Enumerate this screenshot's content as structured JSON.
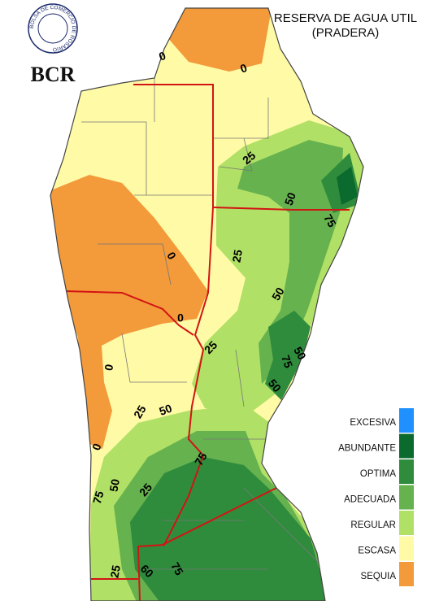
{
  "header": {
    "title": "RESERVA DE AGUA UTIL",
    "subtitle": "(PRADERA)",
    "logo_text": "BCR",
    "logo_ring": "BOLSA DE COMERCIO DE ROSARIO"
  },
  "legend": [
    {
      "label": "EXCESIVA",
      "color": "#1e90ff"
    },
    {
      "label": "ABUNDANTE",
      "color": "#0b6b2e"
    },
    {
      "label": "OPTIMA",
      "color": "#2f8c3c"
    },
    {
      "label": "ADECUADA",
      "color": "#66b24f"
    },
    {
      "label": "REGULAR",
      "color": "#b0e066"
    },
    {
      "label": "ESCASA",
      "color": "#fffaa6"
    },
    {
      "label": "SEQUIA",
      "color": "#f39a3a"
    }
  ],
  "contour_labels": [
    "0",
    "0",
    "25",
    "50",
    "75",
    "0",
    "25",
    "50",
    "0",
    "25",
    "50",
    "75",
    "50",
    "0",
    "25",
    "50",
    "0",
    "75",
    "50",
    "25",
    "75",
    "25",
    "60",
    "75"
  ]
}
